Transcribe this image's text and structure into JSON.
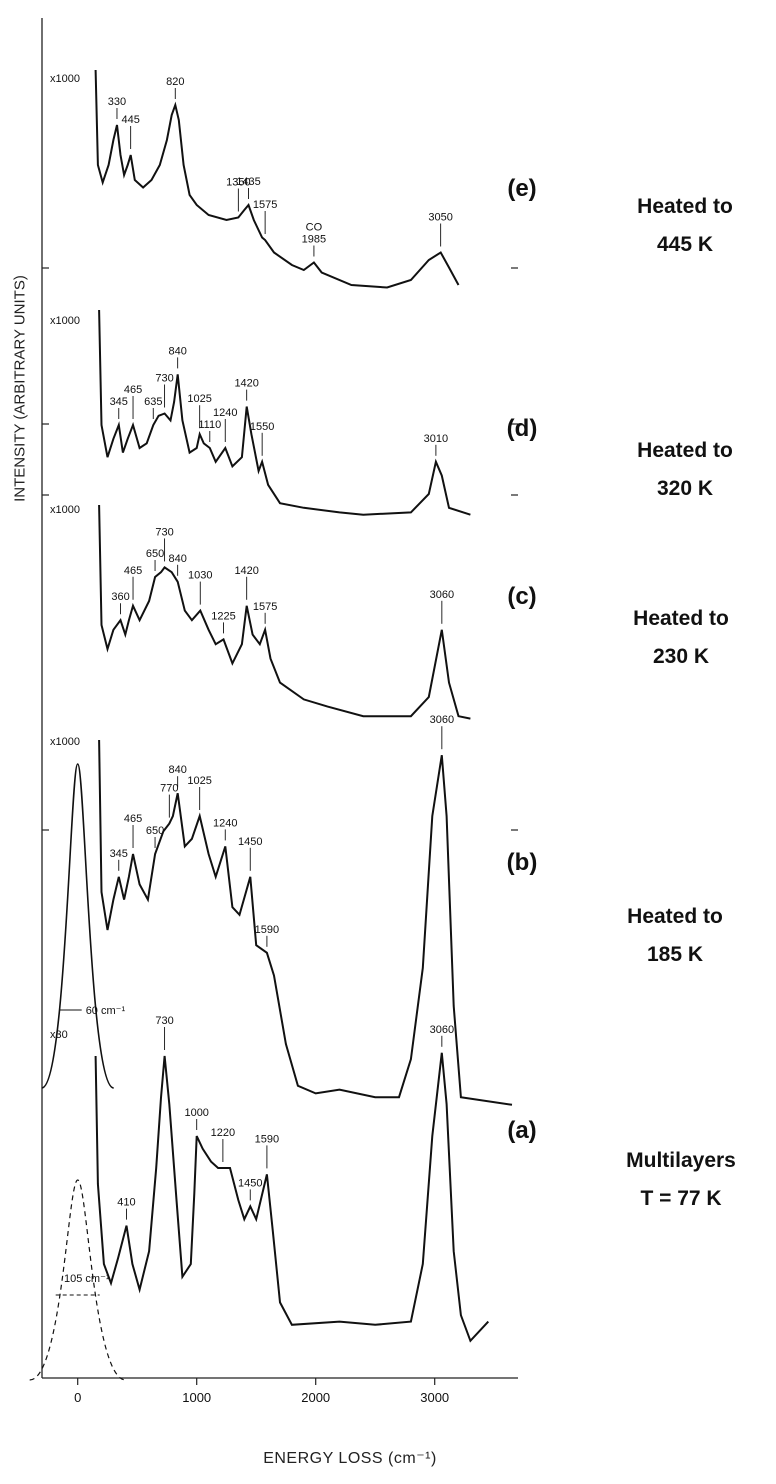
{
  "chart_data": {
    "type": "line",
    "xlabel": "ENERGY LOSS (cm⁻¹)",
    "ylabel": "INTENSITY (ARBITRARY UNITS)",
    "xlim": [
      -300,
      3700
    ],
    "xticks": [
      0,
      1000,
      2000,
      3000
    ],
    "series": [
      {
        "id": "e",
        "panel_label": "(e)",
        "condition": [
          "Heated to",
          "445 K"
        ],
        "gain": "x1000",
        "range": [
          150,
          3200
        ],
        "points": [
          [
            150,
            1.0
          ],
          [
            170,
            0.62
          ],
          [
            210,
            0.55
          ],
          [
            260,
            0.62
          ],
          [
            300,
            0.72
          ],
          [
            330,
            0.78
          ],
          [
            360,
            0.66
          ],
          [
            390,
            0.58
          ],
          [
            420,
            0.62
          ],
          [
            445,
            0.66
          ],
          [
            480,
            0.56
          ],
          [
            550,
            0.53
          ],
          [
            620,
            0.56
          ],
          [
            690,
            0.62
          ],
          [
            750,
            0.72
          ],
          [
            790,
            0.82
          ],
          [
            820,
            0.86
          ],
          [
            850,
            0.8
          ],
          [
            890,
            0.62
          ],
          [
            940,
            0.5
          ],
          [
            1000,
            0.46
          ],
          [
            1100,
            0.42
          ],
          [
            1250,
            0.4
          ],
          [
            1350,
            0.41
          ],
          [
            1400,
            0.44
          ],
          [
            1435,
            0.46
          ],
          [
            1480,
            0.4
          ],
          [
            1550,
            0.33
          ],
          [
            1575,
            0.32
          ],
          [
            1650,
            0.27
          ],
          [
            1800,
            0.22
          ],
          [
            1900,
            0.2
          ],
          [
            1985,
            0.23
          ],
          [
            2050,
            0.19
          ],
          [
            2300,
            0.14
          ],
          [
            2600,
            0.13
          ],
          [
            2800,
            0.16
          ],
          [
            2950,
            0.24
          ],
          [
            3050,
            0.27
          ],
          [
            3120,
            0.21
          ],
          [
            3200,
            0.14
          ]
        ],
        "peaks": [
          {
            "x": 330,
            "label": "330"
          },
          {
            "x": 445,
            "label": "445"
          },
          {
            "x": 820,
            "label": "820"
          },
          {
            "x": 1350,
            "label": "1350"
          },
          {
            "x": 1435,
            "label": "1435"
          },
          {
            "x": 1575,
            "label": "1575"
          },
          {
            "x": 1985,
            "label": "1985",
            "sublabel": "CO"
          },
          {
            "x": 3050,
            "label": "3050"
          }
        ]
      },
      {
        "id": "d",
        "panel_label": "(d)",
        "condition": [
          "Heated to",
          "320 K"
        ],
        "gain": "x1000",
        "range": [
          180,
          3300
        ],
        "points": [
          [
            180,
            1.0
          ],
          [
            200,
            0.5
          ],
          [
            250,
            0.36
          ],
          [
            300,
            0.44
          ],
          [
            345,
            0.5
          ],
          [
            380,
            0.38
          ],
          [
            420,
            0.44
          ],
          [
            465,
            0.5
          ],
          [
            520,
            0.4
          ],
          [
            580,
            0.42
          ],
          [
            635,
            0.5
          ],
          [
            680,
            0.54
          ],
          [
            730,
            0.55
          ],
          [
            780,
            0.52
          ],
          [
            810,
            0.6
          ],
          [
            840,
            0.72
          ],
          [
            880,
            0.52
          ],
          [
            940,
            0.38
          ],
          [
            1000,
            0.4
          ],
          [
            1025,
            0.46
          ],
          [
            1060,
            0.42
          ],
          [
            1110,
            0.4
          ],
          [
            1160,
            0.34
          ],
          [
            1240,
            0.4
          ],
          [
            1300,
            0.32
          ],
          [
            1380,
            0.36
          ],
          [
            1420,
            0.58
          ],
          [
            1460,
            0.46
          ],
          [
            1520,
            0.3
          ],
          [
            1550,
            0.34
          ],
          [
            1600,
            0.24
          ],
          [
            1700,
            0.16
          ],
          [
            1900,
            0.14
          ],
          [
            2200,
            0.12
          ],
          [
            2400,
            0.11
          ],
          [
            2800,
            0.12
          ],
          [
            2950,
            0.2
          ],
          [
            3010,
            0.34
          ],
          [
            3060,
            0.28
          ],
          [
            3120,
            0.14
          ],
          [
            3300,
            0.11
          ]
        ],
        "peaks": [
          {
            "x": 345,
            "label": "345"
          },
          {
            "x": 465,
            "label": "465"
          },
          {
            "x": 635,
            "label": "635"
          },
          {
            "x": 730,
            "label": "730"
          },
          {
            "x": 840,
            "label": "840"
          },
          {
            "x": 1025,
            "label": "1025"
          },
          {
            "x": 1110,
            "label": "1110"
          },
          {
            "x": 1240,
            "label": "1240"
          },
          {
            "x": 1420,
            "label": "1420"
          },
          {
            "x": 1550,
            "label": "1550"
          },
          {
            "x": 3010,
            "label": "3010"
          }
        ]
      },
      {
        "id": "c",
        "panel_label": "(c)",
        "condition": [
          "Heated to",
          "230 K"
        ],
        "gain": "x1000",
        "range": [
          180,
          3300
        ],
        "points": [
          [
            180,
            1.0
          ],
          [
            200,
            0.5
          ],
          [
            250,
            0.4
          ],
          [
            300,
            0.48
          ],
          [
            360,
            0.52
          ],
          [
            400,
            0.46
          ],
          [
            430,
            0.52
          ],
          [
            465,
            0.58
          ],
          [
            520,
            0.52
          ],
          [
            600,
            0.6
          ],
          [
            650,
            0.7
          ],
          [
            700,
            0.72
          ],
          [
            730,
            0.74
          ],
          [
            790,
            0.72
          ],
          [
            840,
            0.68
          ],
          [
            900,
            0.56
          ],
          [
            960,
            0.52
          ],
          [
            1030,
            0.56
          ],
          [
            1100,
            0.48
          ],
          [
            1160,
            0.42
          ],
          [
            1225,
            0.44
          ],
          [
            1300,
            0.34
          ],
          [
            1380,
            0.42
          ],
          [
            1420,
            0.58
          ],
          [
            1470,
            0.46
          ],
          [
            1530,
            0.42
          ],
          [
            1575,
            0.48
          ],
          [
            1620,
            0.36
          ],
          [
            1700,
            0.26
          ],
          [
            1900,
            0.19
          ],
          [
            2100,
            0.16
          ],
          [
            2400,
            0.12
          ],
          [
            2800,
            0.12
          ],
          [
            2950,
            0.2
          ],
          [
            3060,
            0.48
          ],
          [
            3120,
            0.26
          ],
          [
            3200,
            0.12
          ],
          [
            3300,
            0.11
          ]
        ],
        "peaks": [
          {
            "x": 360,
            "label": "360"
          },
          {
            "x": 465,
            "label": "465"
          },
          {
            "x": 650,
            "label": "650"
          },
          {
            "x": 730,
            "label": "730"
          },
          {
            "x": 840,
            "label": "840"
          },
          {
            "x": 1030,
            "label": "1030"
          },
          {
            "x": 1225,
            "label": "1225"
          },
          {
            "x": 1420,
            "label": "1420"
          },
          {
            "x": 1575,
            "label": "1575"
          },
          {
            "x": 3060,
            "label": "3060"
          }
        ]
      },
      {
        "id": "b",
        "panel_label": "(b)",
        "condition": [
          "Heated to",
          "185 K"
        ],
        "gain": "x1000",
        "range": [
          180,
          3650
        ],
        "points": [
          [
            180,
            1.0
          ],
          [
            200,
            0.6
          ],
          [
            250,
            0.5
          ],
          [
            300,
            0.58
          ],
          [
            345,
            0.64
          ],
          [
            390,
            0.58
          ],
          [
            430,
            0.64
          ],
          [
            465,
            0.7
          ],
          [
            520,
            0.62
          ],
          [
            590,
            0.58
          ],
          [
            650,
            0.7
          ],
          [
            720,
            0.76
          ],
          [
            770,
            0.78
          ],
          [
            800,
            0.8
          ],
          [
            840,
            0.86
          ],
          [
            900,
            0.72
          ],
          [
            960,
            0.74
          ],
          [
            1025,
            0.8
          ],
          [
            1100,
            0.7
          ],
          [
            1160,
            0.64
          ],
          [
            1240,
            0.72
          ],
          [
            1300,
            0.56
          ],
          [
            1360,
            0.54
          ],
          [
            1450,
            0.64
          ],
          [
            1500,
            0.46
          ],
          [
            1590,
            0.44
          ],
          [
            1650,
            0.38
          ],
          [
            1750,
            0.2
          ],
          [
            1850,
            0.09
          ],
          [
            2000,
            0.07
          ],
          [
            2200,
            0.08
          ],
          [
            2500,
            0.06
          ],
          [
            2700,
            0.06
          ],
          [
            2800,
            0.16
          ],
          [
            2900,
            0.4
          ],
          [
            2980,
            0.8
          ],
          [
            3060,
            0.96
          ],
          [
            3100,
            0.8
          ],
          [
            3160,
            0.3
          ],
          [
            3220,
            0.06
          ],
          [
            3650,
            0.04
          ]
        ],
        "peaks": [
          {
            "x": 345,
            "label": "345"
          },
          {
            "x": 465,
            "label": "465"
          },
          {
            "x": 650,
            "label": "650"
          },
          {
            "x": 770,
            "label": "770"
          },
          {
            "x": 840,
            "label": "840"
          },
          {
            "x": 1025,
            "label": "1025"
          },
          {
            "x": 1240,
            "label": "1240"
          },
          {
            "x": 1450,
            "label": "1450"
          },
          {
            "x": 1590,
            "label": "1590"
          },
          {
            "x": 3060,
            "label": "3060"
          }
        ],
        "elastic_width": "60 cm⁻¹"
      },
      {
        "id": "a",
        "panel_label": "(a)",
        "condition": [
          "Multilayers",
          "T = 77 K"
        ],
        "gain": "x30",
        "range": [
          150,
          3450
        ],
        "points": [
          [
            150,
            0.95
          ],
          [
            170,
            0.55
          ],
          [
            220,
            0.3
          ],
          [
            280,
            0.24
          ],
          [
            340,
            0.32
          ],
          [
            410,
            0.42
          ],
          [
            460,
            0.3
          ],
          [
            520,
            0.22
          ],
          [
            600,
            0.34
          ],
          [
            660,
            0.6
          ],
          [
            700,
            0.82
          ],
          [
            730,
            0.95
          ],
          [
            770,
            0.8
          ],
          [
            830,
            0.5
          ],
          [
            880,
            0.26
          ],
          [
            950,
            0.3
          ],
          [
            980,
            0.52
          ],
          [
            1000,
            0.7
          ],
          [
            1050,
            0.66
          ],
          [
            1120,
            0.62
          ],
          [
            1180,
            0.6
          ],
          [
            1220,
            0.6
          ],
          [
            1280,
            0.6
          ],
          [
            1350,
            0.5
          ],
          [
            1400,
            0.44
          ],
          [
            1450,
            0.48
          ],
          [
            1500,
            0.44
          ],
          [
            1590,
            0.58
          ],
          [
            1640,
            0.4
          ],
          [
            1700,
            0.18
          ],
          [
            1800,
            0.11
          ],
          [
            2200,
            0.12
          ],
          [
            2500,
            0.11
          ],
          [
            2800,
            0.12
          ],
          [
            2900,
            0.3
          ],
          [
            2980,
            0.7
          ],
          [
            3060,
            0.96
          ],
          [
            3100,
            0.8
          ],
          [
            3160,
            0.34
          ],
          [
            3220,
            0.14
          ],
          [
            3300,
            0.06
          ],
          [
            3450,
            0.12
          ]
        ],
        "peaks": [
          {
            "x": 410,
            "label": "410"
          },
          {
            "x": 730,
            "label": "730"
          },
          {
            "x": 1000,
            "label": "1000"
          },
          {
            "x": 1220,
            "label": "1220"
          },
          {
            "x": 1450,
            "label": "1450"
          },
          {
            "x": 1590,
            "label": "1590"
          },
          {
            "x": 3060,
            "label": "3060"
          }
        ],
        "elastic_width": "105 cm⁻¹"
      }
    ]
  }
}
